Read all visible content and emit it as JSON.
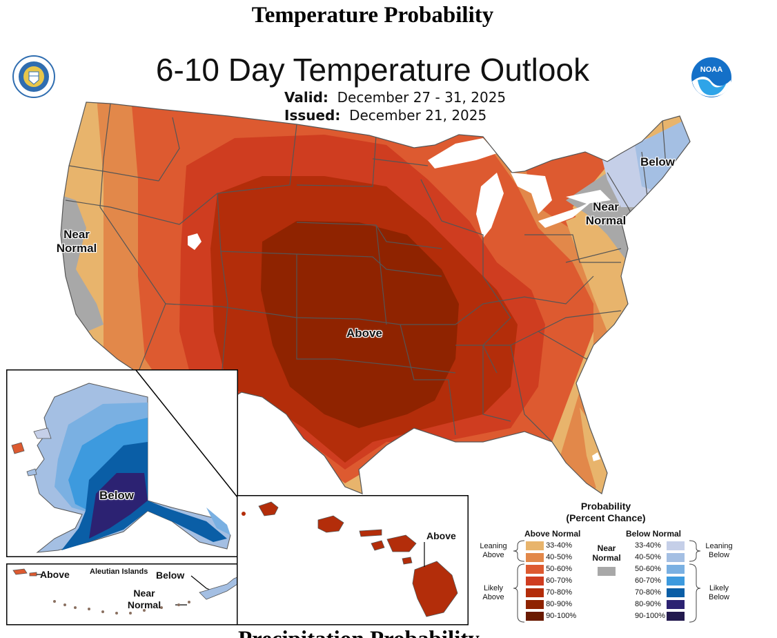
{
  "page_heading": "Temperature Probability",
  "title": "6-10 Day Temperature Outlook",
  "valid": {
    "label": "Valid:",
    "value": "December 27 - 31, 2025"
  },
  "issued": {
    "label": "Issued:",
    "value": "December 21, 2025"
  },
  "bottom_heading_fragment": "Precipitation Probability",
  "logos": {
    "left": "Department of Commerce seal",
    "right": "NOAA"
  },
  "map_labels": {
    "west_near": "Near\nNormal",
    "northeast_near": "Near\nNormal",
    "northeast_below": "Below",
    "central_above": "Above",
    "alaska_below": "Below",
    "aleutian_above": "Above",
    "aleutian_title": "Aleutian Islands",
    "aleutian_below": "Below",
    "aleutian_near": "Near\nNormal",
    "hawaii_above": "Above"
  },
  "legend": {
    "title": "Probability\n(Percent Chance)",
    "above_header": "Above Normal",
    "below_header": "Below Normal",
    "near_label": "Near\nNormal",
    "leaning_above": "Leaning\nAbove",
    "likely_above": "Likely\nAbove",
    "leaning_below": "Leaning\nBelow",
    "likely_below": "Likely\nBelow",
    "above_rows": [
      {
        "range": "33-40%",
        "color": "#e8b46c"
      },
      {
        "range": "40-50%",
        "color": "#e2884a"
      },
      {
        "range": "50-60%",
        "color": "#dd5a30"
      },
      {
        "range": "60-70%",
        "color": "#cf3d20"
      },
      {
        "range": "70-80%",
        "color": "#b32d0a"
      },
      {
        "range": "80-90%",
        "color": "#8f2300"
      },
      {
        "range": "90-100%",
        "color": "#6a1a00"
      }
    ],
    "below_rows": [
      {
        "range": "33-40%",
        "color": "#c5cfe8"
      },
      {
        "range": "40-50%",
        "color": "#a4bfe3"
      },
      {
        "range": "50-60%",
        "color": "#7ab0e2"
      },
      {
        "range": "60-70%",
        "color": "#3d9ade"
      },
      {
        "range": "70-80%",
        "color": "#0a5ea6"
      },
      {
        "range": "80-90%",
        "color": "#2c2272"
      },
      {
        "range": "90-100%",
        "color": "#231a4e"
      }
    ],
    "near_color": "#a8a8a8"
  }
}
